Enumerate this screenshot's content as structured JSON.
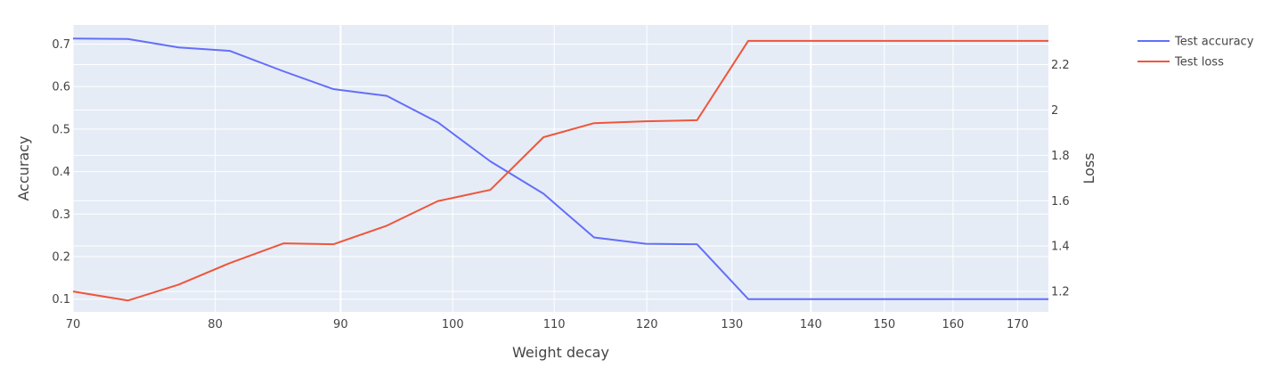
{
  "chart_data": {
    "type": "line",
    "title": "",
    "xlabel": "Weight decay",
    "ylabel": "Accuracy",
    "y2label": "Loss",
    "xlim": [
      70,
      175
    ],
    "ylim": [
      0.07,
      0.745
    ],
    "y2lim": [
      1.11,
      2.375
    ],
    "x_tick_values": [
      70,
      80,
      90,
      100,
      110,
      120,
      130,
      140,
      150,
      160,
      170
    ],
    "x_tick_positions": [
      0,
      0.55,
      1.0,
      1.35,
      1.65,
      2.0,
      2.3,
      2.6,
      2.85,
      3.1,
      3.35
    ],
    "y_ticks": [
      0.1,
      0.2,
      0.3,
      0.4,
      0.5,
      0.6,
      0.7
    ],
    "y2_ticks": [
      1.2,
      1.4,
      1.6,
      1.8,
      2.0,
      2.2
    ],
    "y2_tick_labels": [
      "1.2",
      "1.4",
      "1.6",
      "1.8",
      "2",
      "2.2"
    ],
    "x_scale": "log",
    "grid": true,
    "legend_position": "top-right",
    "series": [
      {
        "name": "Test accuracy",
        "axis": "y",
        "color": "#636efa",
        "x": [
          70,
          73.7,
          77.3,
          81.1,
          85.3,
          89.4,
          94,
          98.6,
          103.6,
          108.9,
          114.2,
          119.9,
          125.8,
          132,
          175
        ],
        "values": [
          0.713,
          0.712,
          0.692,
          0.684,
          0.636,
          0.594,
          0.578,
          0.516,
          0.424,
          0.348,
          0.245,
          0.23,
          0.229,
          0.1,
          0.1
        ]
      },
      {
        "name": "Test loss",
        "axis": "y2",
        "color": "#ef553b",
        "x": [
          70,
          73.7,
          77.3,
          81.1,
          85.3,
          89.4,
          94,
          98.6,
          103.6,
          108.9,
          114.2,
          119.9,
          125.8,
          132,
          175
        ],
        "values": [
          1.2,
          1.16,
          1.23,
          1.325,
          1.412,
          1.408,
          1.49,
          1.598,
          1.648,
          1.88,
          1.942,
          1.95,
          1.955,
          2.305,
          2.305
        ]
      }
    ]
  }
}
